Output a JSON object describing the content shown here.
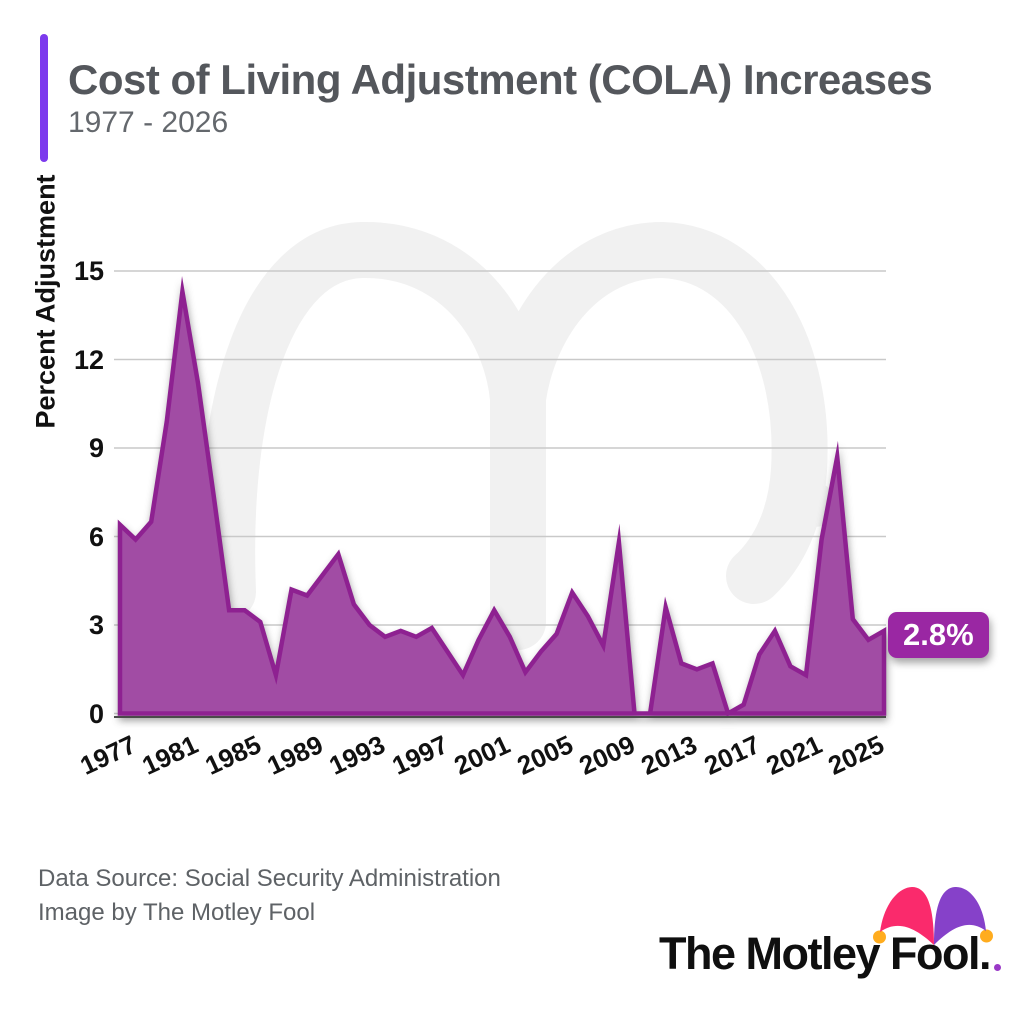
{
  "header": {
    "title": "Cost of Living Adjustment (COLA) Increases",
    "subtitle": "1977 - 2026",
    "accent_color": "#7C3AED"
  },
  "chart_data": {
    "type": "area",
    "title": "Cost of Living Adjustment (COLA) Increases",
    "subtitle": "1977 - 2026",
    "series_name": "COLA percent adjustment",
    "xlabel": "",
    "ylabel": "Percent Adjustment",
    "ylim": [
      0,
      15
    ],
    "yticks": [
      0,
      3,
      6,
      9,
      12,
      15
    ],
    "xticks": [
      1977,
      1981,
      1985,
      1989,
      1993,
      1997,
      2001,
      2005,
      2009,
      2013,
      2017,
      2021,
      2025
    ],
    "grid": "horizontal",
    "legend": "none",
    "x": [
      1977,
      1978,
      1979,
      1980,
      1981,
      1982,
      1983,
      1984,
      1985,
      1986,
      1987,
      1988,
      1989,
      1990,
      1991,
      1992,
      1993,
      1994,
      1995,
      1996,
      1997,
      1998,
      1999,
      2000,
      2001,
      2002,
      2003,
      2004,
      2005,
      2006,
      2007,
      2008,
      2009,
      2010,
      2011,
      2012,
      2013,
      2014,
      2015,
      2016,
      2017,
      2018,
      2019,
      2020,
      2021,
      2022,
      2023,
      2024,
      2025,
      2026
    ],
    "values": [
      6.4,
      5.9,
      6.5,
      9.9,
      14.3,
      11.2,
      7.4,
      3.5,
      3.5,
      3.1,
      1.3,
      4.2,
      4.0,
      4.7,
      5.4,
      3.7,
      3.0,
      2.6,
      2.8,
      2.6,
      2.9,
      2.1,
      1.3,
      2.5,
      3.5,
      2.6,
      1.4,
      2.1,
      2.7,
      4.1,
      3.3,
      2.3,
      5.8,
      0.0,
      0.0,
      3.6,
      1.7,
      1.5,
      1.7,
      0.0,
      0.3,
      2.0,
      2.8,
      1.6,
      1.3,
      5.9,
      8.7,
      3.2,
      2.5,
      2.8
    ],
    "callout": {
      "label": "2.8%",
      "year": 2026,
      "value": 2.8
    },
    "colors": {
      "area_fill": "#A14CA4",
      "line": "#8E2191",
      "grid": "#C9C9C9",
      "axis": "#4A4A4A",
      "badge": "#9A27A3"
    }
  },
  "watermark": {
    "name": "jester-hat-watermark",
    "color": "#F1F1F1"
  },
  "footer": {
    "line1": "Data Source: Social Security Administration",
    "line2": "Image by The Motley Fool"
  },
  "logo": {
    "text": "The Motley Fool",
    "period": ".",
    "colors": {
      "hat_pink": "#FA2A6C",
      "hat_purple": "#8641C9",
      "ball": "#FFAC1E",
      "text": "#0f0f0f"
    }
  }
}
